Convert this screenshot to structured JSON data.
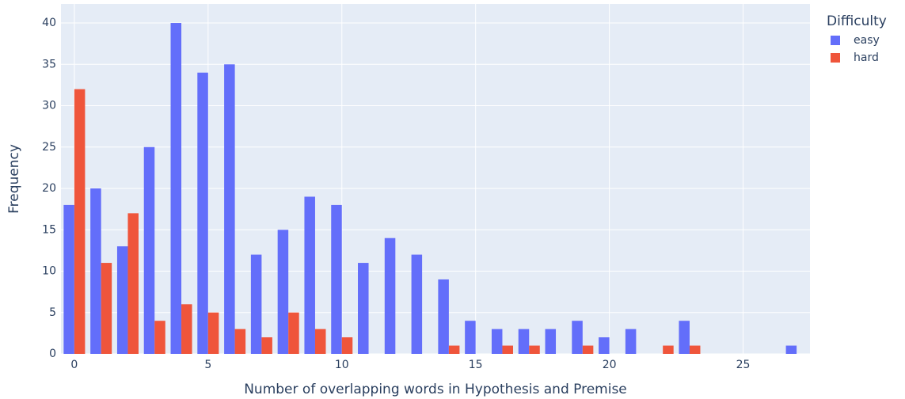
{
  "chart_data": {
    "type": "bar",
    "x_label": "Number of overlapping words in Hypothesis and Premise",
    "y_label": "Frequency",
    "legend_title": "Difficulty",
    "legend_position": "right",
    "grid": true,
    "x": [
      0,
      1,
      2,
      3,
      4,
      5,
      6,
      7,
      8,
      9,
      10,
      11,
      12,
      13,
      14,
      15,
      16,
      17,
      18,
      19,
      20,
      21,
      22,
      23,
      24,
      25,
      26,
      27
    ],
    "series": [
      {
        "name": "easy",
        "color": "#636efa",
        "values": [
          18,
          20,
          13,
          25,
          40,
          34,
          35,
          12,
          15,
          19,
          18,
          11,
          14,
          12,
          9,
          4,
          3,
          3,
          3,
          4,
          2,
          3,
          0,
          4,
          0,
          0,
          0,
          1
        ]
      },
      {
        "name": "hard",
        "color": "#ef553b",
        "values": [
          32,
          11,
          17,
          4,
          6,
          5,
          3,
          2,
          5,
          3,
          2,
          0,
          0,
          0,
          1,
          0,
          1,
          1,
          0,
          1,
          0,
          0,
          1,
          1,
          0,
          0,
          0,
          0
        ]
      }
    ],
    "xlim": [
      -0.5,
      27.5
    ],
    "xticks": [
      0,
      5,
      10,
      15,
      20,
      25
    ],
    "ylim": [
      0,
      42.3
    ],
    "yticks": [
      0,
      5,
      10,
      15,
      20,
      25,
      30,
      35,
      40
    ]
  }
}
